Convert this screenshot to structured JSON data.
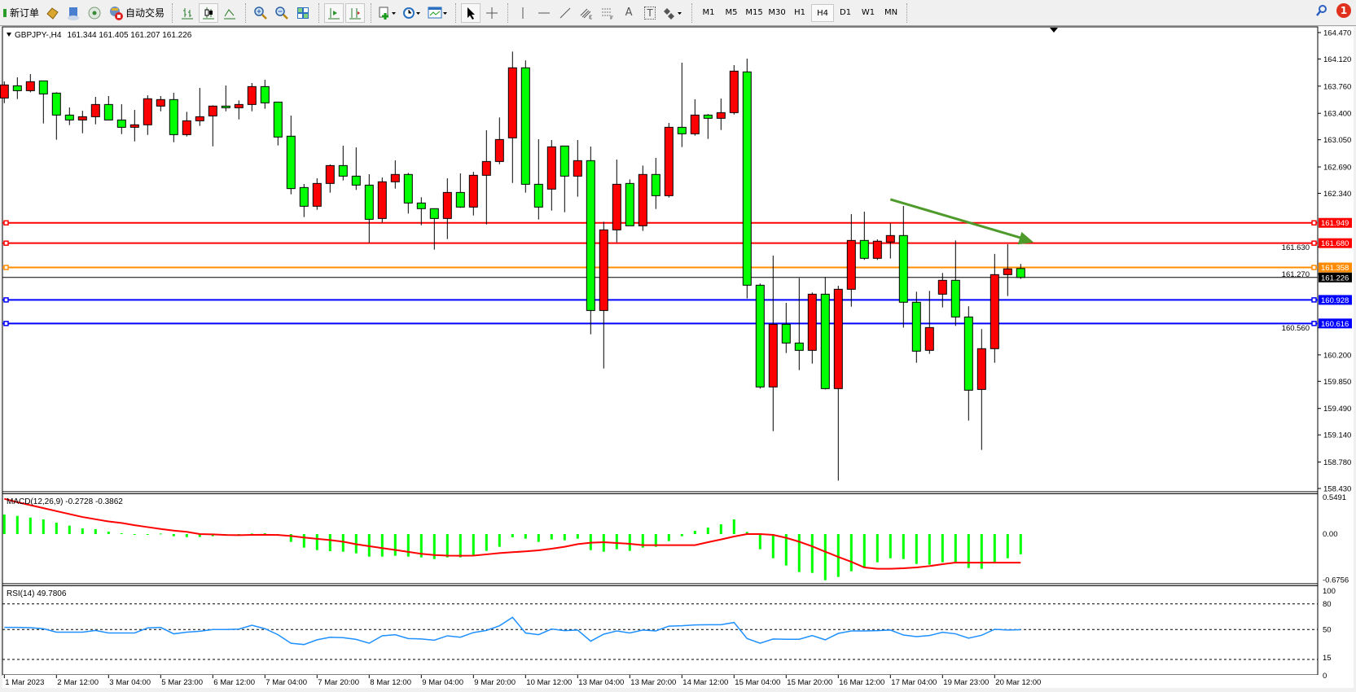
{
  "toolbar": {
    "new_order": "新订单",
    "auto_trading": "自动交易",
    "icons": [
      "new-order-icon",
      "history-icon",
      "navigator-icon",
      "signals-icon",
      "autotrading-icon",
      "bar-chart-icon",
      "candlestick-icon",
      "line-chart-icon",
      "zoom-in-icon",
      "zoom-out-icon",
      "tile-windows-icon",
      "auto-scroll-icon",
      "chart-shift-icon",
      "indicators-icon",
      "periods-icon",
      "templates-icon",
      "cursor-icon",
      "crosshair-icon",
      "vertical-line-icon",
      "horizontal-line-icon",
      "trendline-icon",
      "equidistant-channel-icon",
      "fibonacci-icon",
      "text-icon",
      "text-label-icon",
      "arrows-icon"
    ],
    "text_tool": "A",
    "label_tool": "T",
    "timeframes": [
      "M1",
      "M5",
      "M15",
      "M30",
      "H1",
      "H4",
      "D1",
      "W1",
      "MN"
    ],
    "active_timeframe": "H4",
    "notification_count": "1"
  },
  "chart": {
    "symbol_header": "GBPJPY-,H4",
    "ohlc_header": "161.344 161.405 161.207 161.226",
    "colors": {
      "bull": "#ff0000",
      "bear": "#00ff00",
      "grid": "#000000",
      "macd_hist": "#00ff00",
      "macd_signal": "#ff0000",
      "rsi": "#1e90ff"
    }
  },
  "chart_data": {
    "type": "candlestick",
    "symbol": "GBPJPY-",
    "timeframe": "H4",
    "price_ticks": [
      "164.470",
      "164.120",
      "163.760",
      "163.400",
      "163.050",
      "162.690",
      "162.340",
      "161.630",
      "161.270",
      "160.560",
      "160.200",
      "159.850",
      "159.490",
      "159.140",
      "158.780",
      "158.430"
    ],
    "ylim": [
      158.43,
      164.47
    ],
    "time_labels": [
      "1 Mar 2023",
      "2 Mar 12:00",
      "3 Mar 04:00",
      "5 Mar 23:00",
      "6 Mar 12:00",
      "7 Mar 04:00",
      "7 Mar 20:00",
      "8 Mar 12:00",
      "9 Mar 04:00",
      "9 Mar 20:00",
      "10 Mar 12:00",
      "13 Mar 04:00",
      "13 Mar 20:00",
      "14 Mar 12:00",
      "15 Mar 04:00",
      "15 Mar 20:00",
      "16 Mar 12:00",
      "17 Mar 04:00",
      "19 Mar 23:00",
      "20 Mar 12:00"
    ],
    "candles_ohlc": [
      [
        163.603,
        163.823,
        163.535,
        163.776
      ],
      [
        163.765,
        163.877,
        163.589,
        163.7
      ],
      [
        163.7,
        163.92,
        163.679,
        163.819
      ],
      [
        163.83,
        163.83,
        163.266,
        163.657
      ],
      [
        163.668,
        163.679,
        163.05,
        163.377
      ],
      [
        163.377,
        163.478,
        163.244,
        163.312
      ],
      [
        163.312,
        163.434,
        163.136,
        163.355
      ],
      [
        163.355,
        163.618,
        163.255,
        163.517
      ],
      [
        163.517,
        163.629,
        163.312,
        163.312
      ],
      [
        163.312,
        163.521,
        163.125,
        163.215
      ],
      [
        163.215,
        163.445,
        163.028,
        163.248
      ],
      [
        163.248,
        163.639,
        163.114,
        163.593
      ],
      [
        163.496,
        163.629,
        163.427,
        163.582
      ],
      [
        163.582,
        163.672,
        163.017,
        163.118
      ],
      [
        163.118,
        163.42,
        163.093,
        163.301
      ],
      [
        163.301,
        163.737,
        163.233,
        163.355
      ],
      [
        163.366,
        163.506,
        162.963,
        163.496
      ],
      [
        163.496,
        163.769,
        163.427,
        163.474
      ],
      [
        163.474,
        163.571,
        163.319,
        163.517
      ],
      [
        163.517,
        163.801,
        163.427,
        163.754
      ],
      [
        163.754,
        163.844,
        163.46,
        163.539
      ],
      [
        163.549,
        163.549,
        162.974,
        163.086
      ],
      [
        163.097,
        163.37,
        162.327,
        162.403
      ],
      [
        162.417,
        162.464,
        162.025,
        162.169
      ],
      [
        162.169,
        162.539,
        162.122,
        162.471
      ],
      [
        162.471,
        162.723,
        162.349,
        162.708
      ],
      [
        162.708,
        162.971,
        162.511,
        162.568
      ],
      [
        162.568,
        162.949,
        162.385,
        162.449
      ],
      [
        162.449,
        162.593,
        161.684,
        161.996
      ],
      [
        162.007,
        162.55,
        161.953,
        162.493
      ],
      [
        162.493,
        162.777,
        162.403,
        162.59
      ],
      [
        162.59,
        162.611,
        162.072,
        162.212
      ],
      [
        162.212,
        162.288,
        161.917,
        162.137
      ],
      [
        162.137,
        162.137,
        161.594,
        162.007
      ],
      [
        162.007,
        162.539,
        161.734,
        162.352
      ],
      [
        162.352,
        162.604,
        162.147,
        162.158
      ],
      [
        162.158,
        162.625,
        162.047,
        162.579
      ],
      [
        162.579,
        163.176,
        161.928,
        162.762
      ],
      [
        162.762,
        163.345,
        162.726,
        163.053
      ],
      [
        163.075,
        164.218,
        162.478,
        164.003
      ],
      [
        164.003,
        164.1,
        162.349,
        162.46
      ],
      [
        162.46,
        163.057,
        161.993,
        162.158
      ],
      [
        162.396,
        163.046,
        162.111,
        162.956
      ],
      [
        162.967,
        162.967,
        162.09,
        162.568
      ],
      [
        162.568,
        163.046,
        162.295,
        162.773
      ],
      [
        162.773,
        162.96,
        160.472,
        160.788
      ],
      [
        160.788,
        161.964,
        160.019,
        161.856
      ],
      [
        161.856,
        162.787,
        161.691,
        162.46
      ],
      [
        162.471,
        162.525,
        161.91,
        161.91
      ],
      [
        161.91,
        162.708,
        161.842,
        162.59
      ],
      [
        162.59,
        162.809,
        162.133,
        162.309
      ],
      [
        162.309,
        163.273,
        162.284,
        163.215
      ],
      [
        163.215,
        164.071,
        162.953,
        163.129
      ],
      [
        163.129,
        163.586,
        163.104,
        163.377
      ],
      [
        163.377,
        163.391,
        163.061,
        163.334
      ],
      [
        163.334,
        163.596,
        163.179,
        163.409
      ],
      [
        163.409,
        164.039,
        163.384,
        163.959
      ],
      [
        163.949,
        164.125,
        160.947,
        161.123
      ],
      [
        161.123,
        161.145,
        159.753,
        159.775
      ],
      [
        159.775,
        161.515,
        159.189,
        160.605
      ],
      [
        160.605,
        160.889,
        160.224,
        160.357
      ],
      [
        160.357,
        161.217,
        159.998,
        160.26
      ],
      [
        160.26,
        161.026,
        160.084,
        161.004
      ],
      [
        161.004,
        161.231,
        159.742,
        159.753
      ],
      [
        159.753,
        161.116,
        158.534,
        161.069
      ],
      [
        161.069,
        162.065,
        160.839,
        161.716
      ],
      [
        161.716,
        162.098,
        161.458,
        161.479
      ],
      [
        161.479,
        161.731,
        161.458,
        161.706
      ],
      [
        161.695,
        161.943,
        161.476,
        161.781
      ],
      [
        161.781,
        162.173,
        160.562,
        160.897
      ],
      [
        160.897,
        161.037,
        160.095,
        160.249
      ],
      [
        160.26,
        161.048,
        160.214,
        160.562
      ],
      [
        161.004,
        161.285,
        160.828,
        161.188
      ],
      [
        161.188,
        161.716,
        160.584,
        160.702
      ],
      [
        160.702,
        160.843,
        159.329,
        159.732
      ],
      [
        159.742,
        160.541,
        158.941,
        160.282
      ],
      [
        160.282,
        161.537,
        160.095,
        161.263
      ],
      [
        161.263,
        161.666,
        160.979,
        161.339
      ],
      [
        161.344,
        161.405,
        161.207,
        161.226
      ]
    ],
    "levels": [
      {
        "price": "161.949",
        "color": "#ff0000"
      },
      {
        "price": "161.680",
        "color": "#ff0000"
      },
      {
        "price": "161.358",
        "color": "#ff8c00"
      },
      {
        "price": "161.226",
        "color": "#000000"
      },
      {
        "price": "160.928",
        "color": "#0000ff"
      },
      {
        "price": "160.616",
        "color": "#0000ff"
      }
    ],
    "trend_arrow": {
      "color": "#4e9a2a",
      "from": {
        "candle": 68,
        "price": 162.26
      },
      "to": {
        "candle": 79,
        "price": 161.69
      }
    },
    "macd": {
      "label": "MACD(12,26,9) -0.2728 -0.3862",
      "ticks": [
        "0.5491",
        "0.00",
        "-0.6756"
      ],
      "ylim": [
        -0.6756,
        0.5491
      ],
      "histogram": [
        0.264,
        0.245,
        0.223,
        0.198,
        0.154,
        0.114,
        0.077,
        0.066,
        0.033,
        0.011,
        -0.004,
        -0.004,
        0.007,
        -0.029,
        -0.04,
        -0.04,
        -0.029,
        -0.015,
        -0.007,
        0.007,
        0.011,
        0,
        -0.106,
        -0.183,
        -0.216,
        -0.231,
        -0.238,
        -0.26,
        -0.304,
        -0.304,
        -0.293,
        -0.304,
        -0.315,
        -0.337,
        -0.315,
        -0.315,
        -0.289,
        -0.227,
        -0.172,
        -0.044,
        -0.062,
        -0.106,
        -0.073,
        -0.084,
        -0.062,
        -0.216,
        -0.238,
        -0.205,
        -0.227,
        -0.183,
        -0.172,
        -0.095,
        -0.029,
        0.044,
        0.088,
        0.132,
        0.198,
        0.029,
        -0.205,
        -0.326,
        -0.425,
        -0.513,
        -0.524,
        -0.623,
        -0.579,
        -0.502,
        -0.458,
        -0.381,
        -0.326,
        -0.337,
        -0.403,
        -0.414,
        -0.381,
        -0.381,
        -0.458,
        -0.469,
        -0.381,
        -0.326,
        -0.2728
      ],
      "signal": [
        0.476,
        0.43,
        0.39,
        0.35,
        0.31,
        0.27,
        0.23,
        0.2,
        0.17,
        0.15,
        0.12,
        0.094,
        0.069,
        0.047,
        0.03,
        0.0,
        -0.004,
        -0.013,
        -0.015,
        -0.011,
        -0.01,
        -0.013,
        -0.026,
        -0.047,
        -0.064,
        -0.081,
        -0.103,
        -0.137,
        -0.163,
        -0.189,
        -0.214,
        -0.24,
        -0.266,
        -0.283,
        -0.291,
        -0.293,
        -0.291,
        -0.274,
        -0.257,
        -0.245,
        -0.234,
        -0.22,
        -0.198,
        -0.172,
        -0.136,
        -0.117,
        -0.11,
        -0.121,
        -0.132,
        -0.15,
        -0.15,
        -0.15,
        -0.15,
        -0.15,
        -0.11,
        -0.073,
        -0.033,
        0,
        0,
        -0.011,
        -0.051,
        -0.103,
        -0.165,
        -0.238,
        -0.308,
        -0.374,
        -0.451,
        -0.469,
        -0.469,
        -0.462,
        -0.451,
        -0.432,
        -0.407,
        -0.385,
        -0.386,
        -0.386,
        -0.386,
        -0.386,
        -0.3862
      ]
    },
    "rsi": {
      "label": "RSI(14) 49.7806",
      "ticks": [
        "100",
        "80",
        "50",
        "15",
        "0"
      ],
      "levels": [
        80,
        50,
        15
      ],
      "ylim": [
        0,
        100
      ],
      "values": [
        52.5,
        52.5,
        52.2,
        51,
        47,
        47,
        47,
        49,
        46,
        46,
        46,
        52,
        52.5,
        45,
        47,
        48,
        50,
        50,
        50.5,
        55,
        51,
        44,
        34,
        32.5,
        38,
        41,
        40.5,
        38.5,
        34,
        42.7,
        44,
        39.5,
        39,
        37.6,
        42.7,
        41,
        46.5,
        49,
        54.4,
        64.3,
        46,
        44,
        50.6,
        48.7,
        49.4,
        36.4,
        44.6,
        48.4,
        46,
        49.4,
        48.4,
        54,
        54.4,
        55.4,
        55.7,
        55.7,
        58.3,
        39.5,
        34,
        39,
        38.6,
        38.6,
        43,
        38,
        45.5,
        48.4,
        48.4,
        48.7,
        49.4,
        43.6,
        41.7,
        43,
        46.8,
        45,
        40,
        43.3,
        50.3,
        49.4,
        49.7806
      ]
    }
  }
}
